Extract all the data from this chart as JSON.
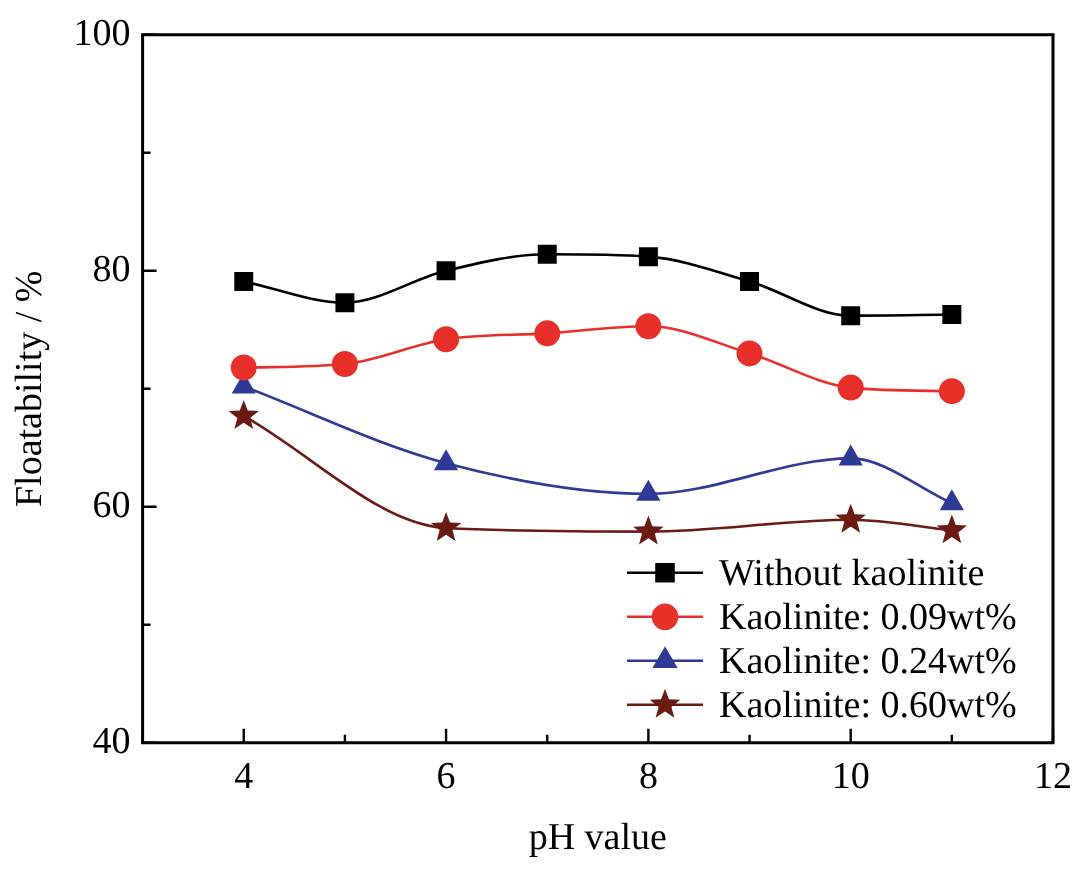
{
  "chart_data": {
    "type": "line",
    "xlabel": "pH value",
    "ylabel": "Floatability / %",
    "xlim": [
      3,
      12
    ],
    "xticks": [
      {
        "value": 3,
        "label": null
      },
      4,
      {
        "value": 5,
        "label": null
      },
      6,
      {
        "value": 7,
        "label": null
      },
      8,
      {
        "value": 9,
        "label": null
      },
      10,
      {
        "value": 11,
        "label": null
      },
      12
    ],
    "ylim": [
      40,
      100
    ],
    "yticks": [
      40,
      {
        "value": 50,
        "label": null
      },
      60,
      {
        "value": 70,
        "label": null
      },
      80,
      {
        "value": 90,
        "label": null
      },
      100
    ],
    "grid": false,
    "legend": "bottom right",
    "series": [
      {
        "name": "Without kaolinite",
        "color": "#000000",
        "marker": "square",
        "x": [
          4,
          5,
          6,
          7,
          8,
          9,
          10,
          11
        ],
        "values": [
          79.1,
          77.3,
          80,
          81.4,
          81.2,
          79.1,
          76.2,
          76.3
        ]
      },
      {
        "name": "Kaolinite: 0.09wt%",
        "color": "#e8302a",
        "marker": "circle",
        "x": [
          4,
          5,
          6,
          7,
          8,
          9,
          10,
          11
        ],
        "values": [
          71.8,
          72.1,
          74.2,
          74.7,
          75.3,
          73.0,
          70.1,
          69.8
        ]
      },
      {
        "name": "Kaolinite: 0.24wt%",
        "color": "#2f3a96",
        "marker": "triangle",
        "x": [
          4,
          6,
          8,
          10,
          11
        ],
        "values": [
          70.2,
          63.7,
          61.1,
          64.1,
          60.3
        ]
      },
      {
        "name": "Kaolinite: 0.60wt%",
        "color": "#6b1a14",
        "marker": "star",
        "x": [
          4,
          6,
          8,
          10,
          11
        ],
        "values": [
          67.7,
          58.2,
          57.9,
          58.9,
          58.0
        ]
      }
    ]
  }
}
